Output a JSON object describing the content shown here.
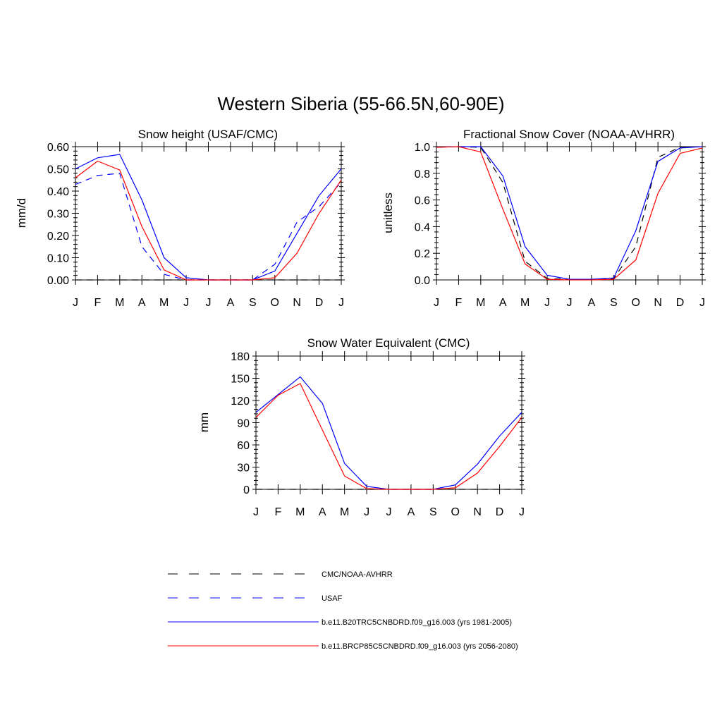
{
  "figure": {
    "title": "Western Siberia (55-66.5N,60-90E)"
  },
  "legend": [
    {
      "key": "obs",
      "name": "CMC/NOAA-AVHRR",
      "color": "#000000",
      "dash": true
    },
    {
      "key": "usaf",
      "name": "USAF",
      "color": "#0000ff",
      "dash": true
    },
    {
      "key": "hist",
      "name": "b.e11.B20TRC5CNBDRD.f09_g16.003 (yrs 1981-2005)",
      "color": "#0000ff",
      "dash": false
    },
    {
      "key": "rcp",
      "name": "b.e11.BRCP85C5CNBDRD.f09_g16.003 (yrs 2056-2080)",
      "color": "#ff0000",
      "dash": false
    }
  ],
  "chart_data": [
    {
      "type": "line",
      "title": "Snow height (USAF/CMC)",
      "ylabel": "mm/d",
      "xlabel": "",
      "categories": [
        "J",
        "F",
        "M",
        "A",
        "M",
        "J",
        "J",
        "A",
        "S",
        "O",
        "N",
        "D",
        "J"
      ],
      "ylim": [
        0,
        0.6
      ],
      "yticks": [
        0,
        0.1,
        0.2,
        0.3,
        0.4,
        0.5,
        0.6
      ],
      "ytick_labels": [
        "0.00",
        "0.10",
        "0.20",
        "0.30",
        "0.40",
        "0.50",
        "0.60"
      ],
      "series": [
        {
          "key": "obs",
          "values": [
            0,
            0,
            0,
            0,
            0,
            0,
            0,
            0,
            0,
            0,
            0,
            0,
            0
          ]
        },
        {
          "key": "usaf",
          "values": [
            0.43,
            0.47,
            0.48,
            0.15,
            0.025,
            0.0,
            0.0,
            0.0,
            0.0,
            0.07,
            0.26,
            0.33,
            0.44
          ]
        },
        {
          "key": "hist",
          "values": [
            0.5,
            0.55,
            0.565,
            0.36,
            0.1,
            0.01,
            0.0,
            0.0,
            0.0,
            0.04,
            0.21,
            0.38,
            0.5
          ]
        },
        {
          "key": "rcp",
          "values": [
            0.46,
            0.535,
            0.495,
            0.24,
            0.045,
            0.0,
            0.0,
            0.0,
            0.0,
            0.01,
            0.12,
            0.3,
            0.45
          ]
        }
      ]
    },
    {
      "type": "line",
      "title": "Fractional Snow Cover (NOAA-AVHRR)",
      "ylabel": "unitless",
      "xlabel": "",
      "categories": [
        "J",
        "F",
        "M",
        "A",
        "M",
        "J",
        "J",
        "A",
        "S",
        "O",
        "N",
        "D",
        "J"
      ],
      "ylim": [
        0,
        1.0
      ],
      "yticks": [
        0,
        0.2,
        0.4,
        0.6,
        0.8,
        1.0
      ],
      "ytick_labels": [
        "0.0",
        "0.2",
        "0.4",
        "0.6",
        "0.8",
        "1.0"
      ],
      "series": [
        {
          "key": "obs",
          "values": [
            0.995,
            1.0,
            0.995,
            0.73,
            0.14,
            0.01,
            0.005,
            0.005,
            0.01,
            0.25,
            0.92,
            0.995,
            1.0
          ]
        },
        {
          "key": "hist",
          "values": [
            0.995,
            1.0,
            1.0,
            0.78,
            0.25,
            0.035,
            0.005,
            0.005,
            0.015,
            0.37,
            0.89,
            0.99,
            1.0
          ]
        },
        {
          "key": "rcp",
          "values": [
            0.995,
            1.0,
            0.96,
            0.53,
            0.12,
            0.005,
            0.0,
            0.0,
            0.005,
            0.15,
            0.65,
            0.95,
            0.99
          ]
        }
      ]
    },
    {
      "type": "line",
      "title": "Snow Water Equivalent (CMC)",
      "ylabel": "mm",
      "xlabel": "",
      "categories": [
        "J",
        "F",
        "M",
        "A",
        "M",
        "J",
        "J",
        "A",
        "S",
        "O",
        "N",
        "D",
        "J"
      ],
      "ylim": [
        0,
        180
      ],
      "yticks": [
        0,
        30,
        60,
        90,
        120,
        150,
        180
      ],
      "ytick_labels": [
        "0",
        "30",
        "60",
        "90",
        "120",
        "150",
        "180"
      ],
      "series": [
        {
          "key": "obs",
          "values": [
            0,
            0,
            0,
            0,
            0,
            0,
            0,
            0,
            0,
            0,
            0,
            0,
            0
          ]
        },
        {
          "key": "hist",
          "values": [
            104,
            128,
            152,
            116,
            35,
            4,
            0,
            0,
            0,
            6,
            34,
            72,
            104
          ]
        },
        {
          "key": "rcp",
          "values": [
            97,
            127,
            143,
            80,
            18,
            1,
            0,
            0,
            0,
            2,
            22,
            58,
            97
          ]
        }
      ]
    }
  ]
}
